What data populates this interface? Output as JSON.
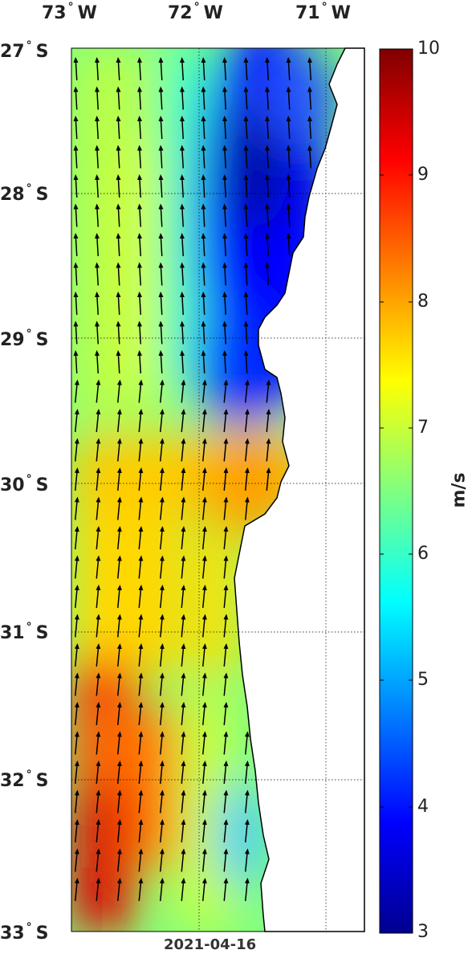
{
  "map": {
    "date": "2021-04-16",
    "lon_labels": [
      {
        "deg": "73",
        "hem": "W"
      },
      {
        "deg": "72",
        "hem": "W"
      },
      {
        "deg": "71",
        "hem": "W"
      }
    ],
    "lat_labels": [
      {
        "deg": "27",
        "hem": "S"
      },
      {
        "deg": "28",
        "hem": "S"
      },
      {
        "deg": "29",
        "hem": "S"
      },
      {
        "deg": "30",
        "hem": "S"
      },
      {
        "deg": "31",
        "hem": "S"
      },
      {
        "deg": "32",
        "hem": "S"
      },
      {
        "deg": "33",
        "hem": "S"
      }
    ],
    "lon_range": [
      -73,
      -70.7
    ],
    "lat_range": [
      -33,
      -27
    ],
    "variable": "wind speed",
    "wind_direction": "southerly (arrows pointing north)",
    "coast": "Chilean coast, land in white"
  },
  "colorbar": {
    "unit": "m/s",
    "min": 3,
    "max": 10,
    "ticks": [
      "10",
      "9",
      "8",
      "7",
      "6",
      "5",
      "4",
      "3"
    ],
    "colormap": [
      "#00008f",
      "#0000ff",
      "#0080ff",
      "#00ffff",
      "#80ff80",
      "#ffff00",
      "#ff8000",
      "#ff0000",
      "#800000"
    ]
  }
}
